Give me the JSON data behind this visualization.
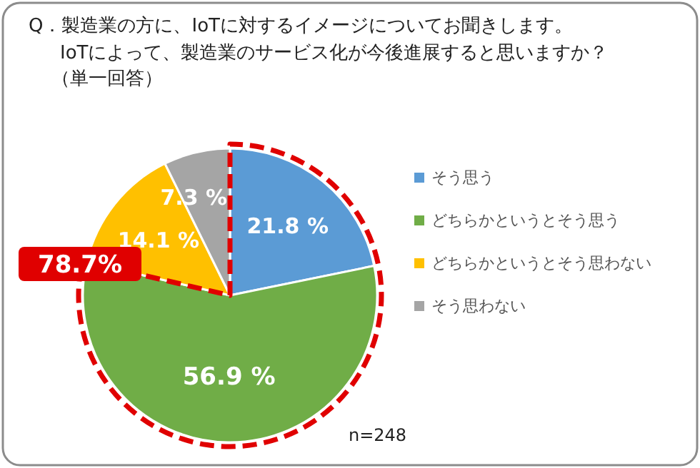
{
  "chart_data": {
    "type": "pie",
    "title": "Q．製造業の方に、IoTに対するイメージについてお聞きします。",
    "subtitle": "IoTによって、製造業のサービス化が今後進展すると思いますか？",
    "categories": [
      "そう思う",
      "どちらかというとそう思う",
      "どちらかというとそう思わない",
      "そう思わない"
    ],
    "values": [
      21.8,
      56.9,
      14.1,
      7.3
    ],
    "colors": [
      "#5b9bd5",
      "#70ad47",
      "#ffc000",
      "#a5a5a5"
    ],
    "value_labels": [
      "21.8 %",
      "56.9 %",
      "14.1 %",
      "7.3 %"
    ],
    "legend": "right",
    "annotations": [
      "（単一回答）",
      "78.7%",
      "n=248"
    ]
  }
}
